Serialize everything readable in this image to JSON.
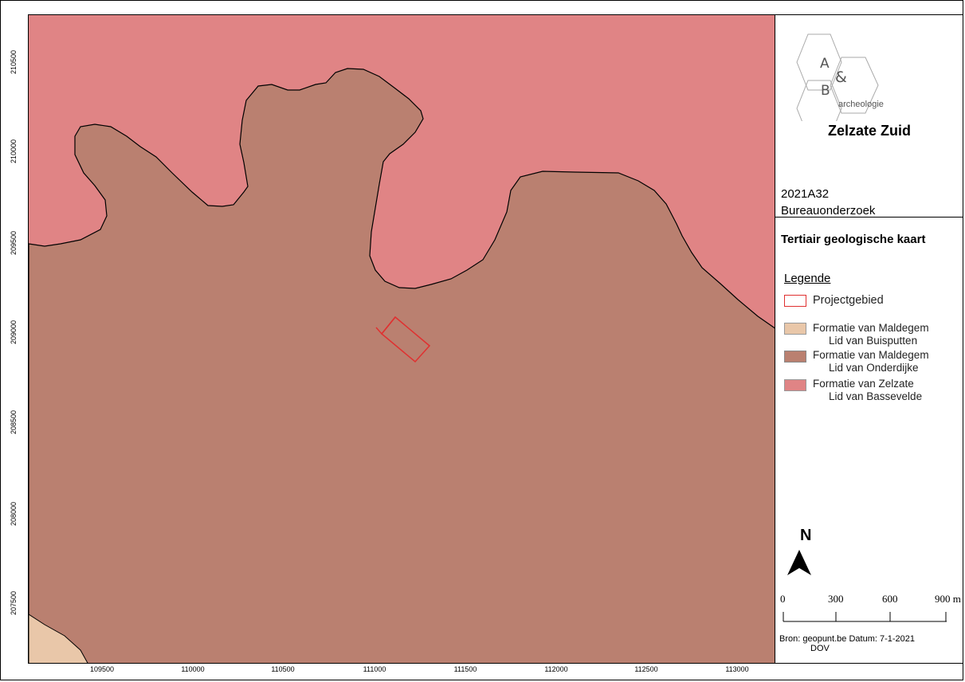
{
  "map": {
    "x_ticks": [
      "109500",
      "110000",
      "110500",
      "111000",
      "111500",
      "112000",
      "112500",
      "113000"
    ],
    "y_ticks": [
      "210500",
      "210000",
      "209500",
      "209000",
      "208500",
      "208000",
      "207500"
    ],
    "colors": {
      "onderdijke": "#ba8070",
      "bassevelde": "#e08485",
      "buisputten": "#e9c7a9",
      "project": "#e03030"
    }
  },
  "logo": {
    "letter_a": "A",
    "ampersand": "&",
    "letter_b": "B",
    "subtitle": "archeologie"
  },
  "title": "Zelzate Zuid",
  "project": {
    "code": "2021A32",
    "type": "Bureauonderzoek"
  },
  "map_title": "Tertiair geologische kaart",
  "legend": {
    "title": "Legende",
    "items": [
      {
        "label": "Projectgebied",
        "sub": "",
        "color": "#e03030"
      },
      {
        "label": "Formatie van Maldegem",
        "sub": "Lid van Buisputten",
        "color": "#e9c7a9"
      },
      {
        "label": "Formatie van Maldegem",
        "sub": "Lid van Onderdijke",
        "color": "#ba8070"
      },
      {
        "label": "Formatie van Zelzate",
        "sub": "Lid van Bassevelde",
        "color": "#e08485"
      }
    ]
  },
  "north": "N",
  "scalebar": {
    "labels": [
      "0",
      "300",
      "600",
      "900 m"
    ]
  },
  "source": {
    "line1": "Bron: geopunt.be  Datum: 7-1-2021",
    "line2": "DOV"
  }
}
